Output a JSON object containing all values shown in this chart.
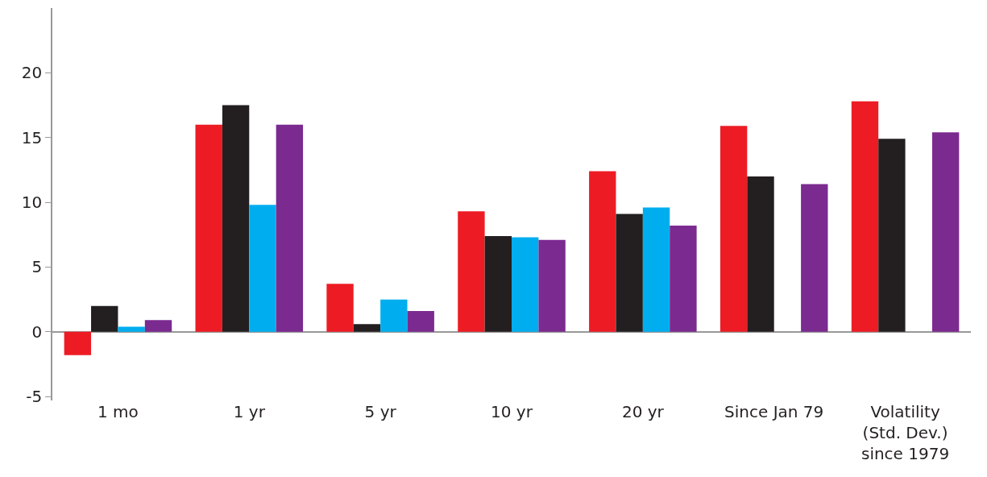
{
  "chart_data": {
    "type": "bar",
    "categories": [
      "1 mo",
      "1 yr",
      "5 yr",
      "10 yr",
      "20 yr",
      "Since Jan 79",
      "Volatility (Std. Dev.) since 1979"
    ],
    "series": [
      {
        "color": "#ed1c24",
        "values": [
          -1.8,
          16.0,
          3.7,
          9.3,
          12.4,
          15.9,
          17.8
        ]
      },
      {
        "color": "#231f20",
        "values": [
          2.0,
          17.5,
          0.6,
          7.4,
          9.1,
          12.0,
          14.9
        ]
      },
      {
        "color": "#00aeef",
        "values": [
          0.4,
          9.8,
          2.5,
          7.3,
          9.6,
          null,
          null
        ]
      },
      {
        "color": "#7b2a90",
        "values": [
          0.9,
          16.0,
          1.6,
          7.1,
          8.2,
          11.4,
          15.4
        ]
      }
    ],
    "ylim": [
      -5.3,
      25
    ],
    "yticks": [
      -5,
      0,
      5,
      10,
      15,
      20
    ]
  }
}
